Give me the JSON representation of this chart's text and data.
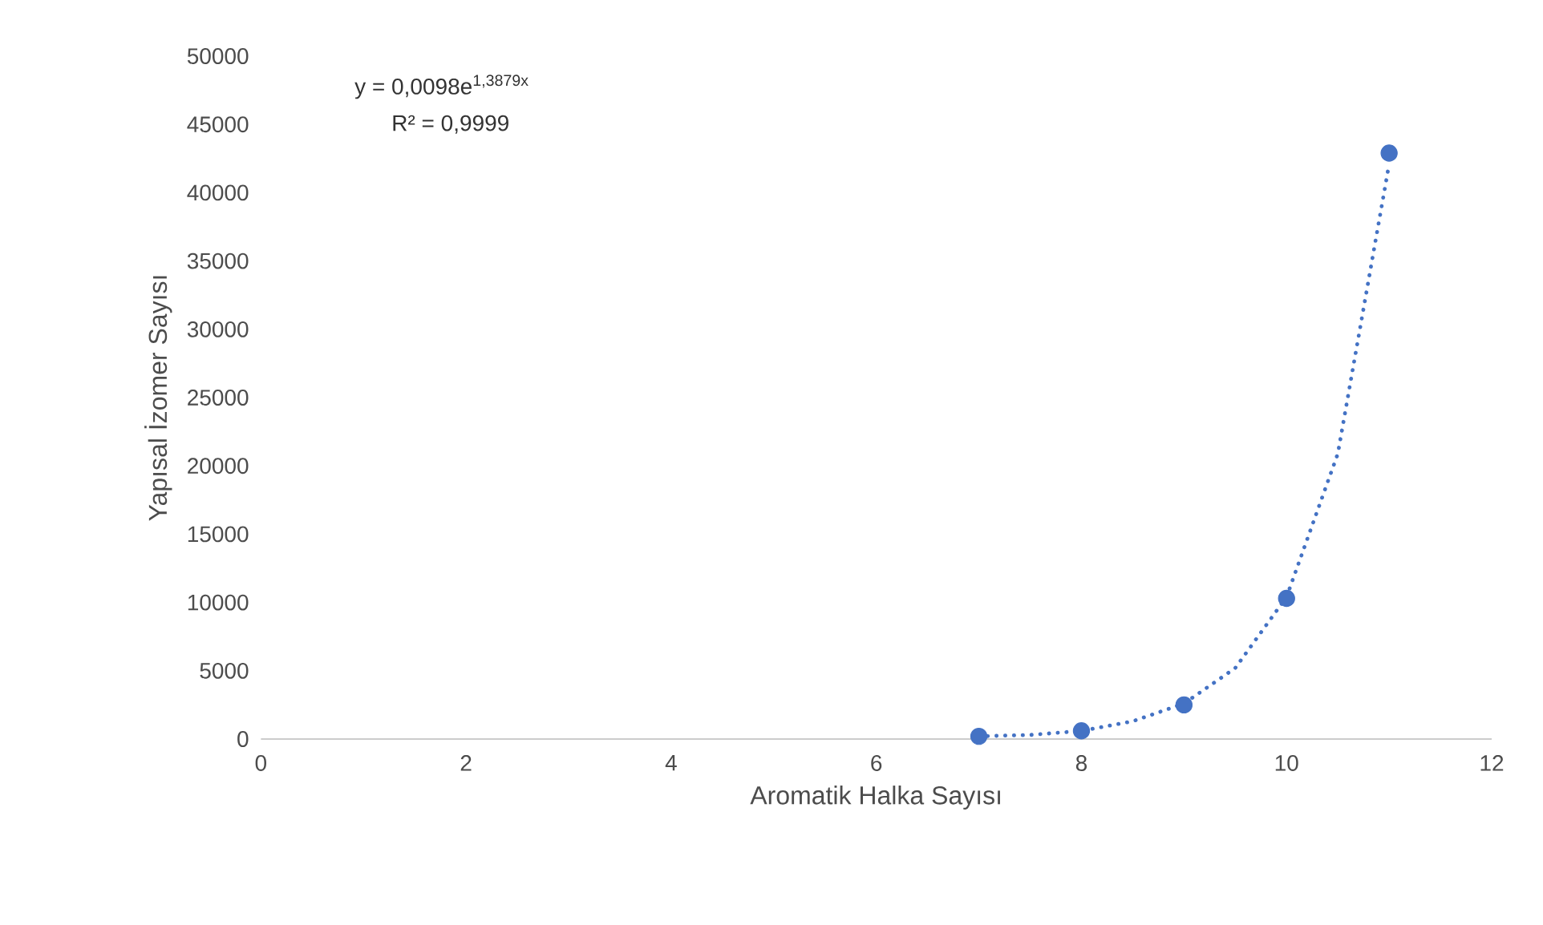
{
  "chart_data": {
    "type": "scatter",
    "xlabel": "Aromatik Halka Sayısı",
    "ylabel": "Yapısal İzomer Sayısı",
    "xlim": [
      0,
      12
    ],
    "xticks": [
      0,
      2,
      4,
      6,
      8,
      10,
      12
    ],
    "ylim": [
      0,
      50000
    ],
    "yticks": [
      0,
      5000,
      10000,
      15000,
      20000,
      25000,
      30000,
      35000,
      40000,
      45000,
      50000
    ],
    "grid": false,
    "legend": false,
    "annotations": [
      "y = 0,0098e$^{1,3879x}$",
      "R² = 0,9999"
    ],
    "series": [
      {
        "color": "#4472c4",
        "marker": "circle",
        "x": [
          7,
          8,
          9,
          10,
          11
        ],
        "values": [
          200,
          600,
          2500,
          10300,
          42900
        ]
      },
      {
        "type": "line",
        "color": "#4472c4",
        "line_style": "dotted",
        "marker": "none",
        "x": [
          7,
          7.5,
          8,
          8.5,
          9,
          9.5,
          10,
          10.5,
          11
        ],
        "values": [
          200,
          300,
          600,
          1300,
          2600,
          5200,
          10400,
          20900,
          42100
        ]
      }
    ]
  }
}
